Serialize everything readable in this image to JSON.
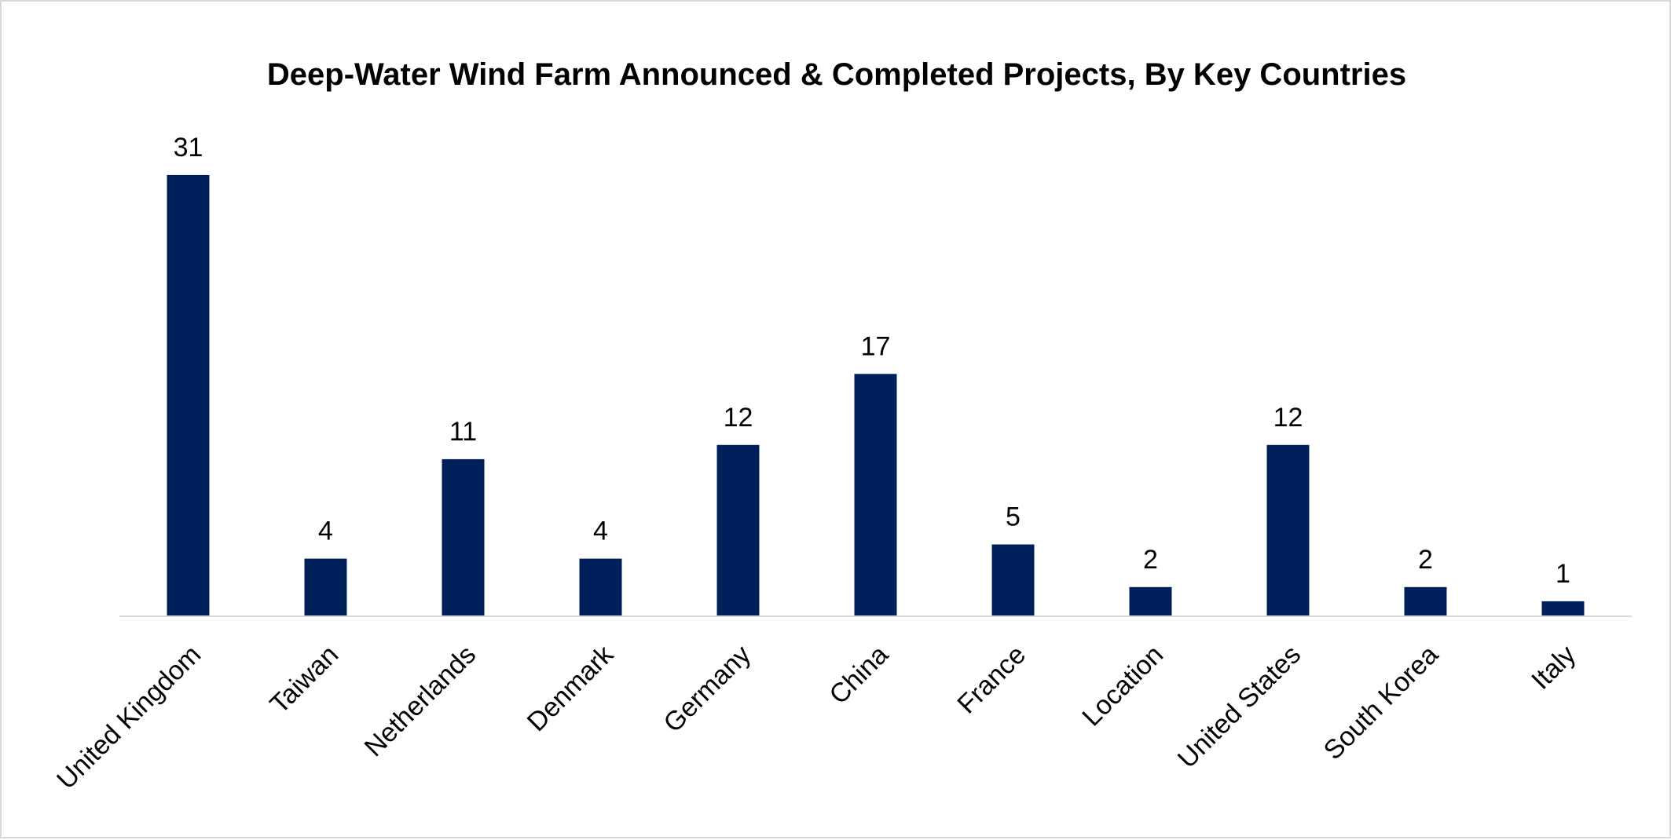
{
  "chart_data": {
    "type": "bar",
    "title": "Deep-Water Wind Farm Announced & Completed Projects, By Key Countries",
    "categories": [
      "United Kingdom",
      "Taiwan",
      "Netherlands",
      "Denmark",
      "Germany",
      "China",
      "France",
      "Location",
      "United States",
      "South Korea",
      "Italy"
    ],
    "series": [
      {
        "values": [
          31,
          4,
          11,
          4,
          12,
          17,
          5,
          2,
          12,
          2,
          1
        ],
        "color": "#00205b"
      }
    ],
    "xlabel": "",
    "ylabel": "",
    "ylim": [
      0,
      35
    ],
    "grid": false,
    "legend": "none",
    "axis_color": "#d9d9d9",
    "tick_label_rotation": "-45"
  }
}
